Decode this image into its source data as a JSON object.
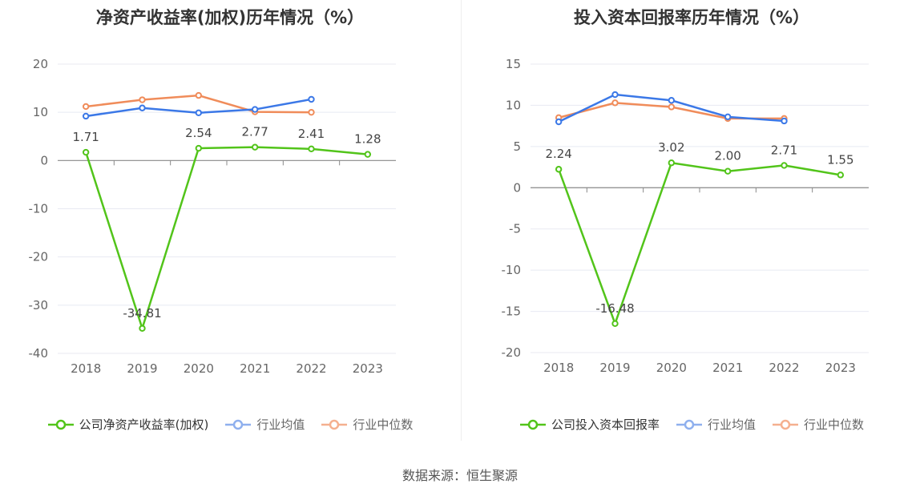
{
  "source_text": "数据来源：恒生聚源",
  "colors": {
    "company": "#52c41a",
    "avg": "#3b78e7",
    "median": "#f08c5a"
  },
  "chart_data": [
    {
      "type": "line",
      "title": "净资产收益率(加权)历年情况（%）",
      "categories": [
        "2018",
        "2019",
        "2020",
        "2021",
        "2022",
        "2023"
      ],
      "ylim": [
        -40,
        20
      ],
      "ytick_step": 10,
      "yticks": [
        "20",
        "10",
        "0",
        "-10",
        "-20",
        "-30",
        "-40"
      ],
      "legend_position": "bottom",
      "series": [
        {
          "name": "公司净资产收益率(加权)",
          "key": "company",
          "values": [
            1.71,
            -34.81,
            2.54,
            2.77,
            2.41,
            1.28
          ],
          "labels": [
            "1.71",
            "-34.81",
            "2.54",
            "2.77",
            "2.41",
            "1.28"
          ]
        },
        {
          "name": "行业均值",
          "key": "avg",
          "values": [
            9.2,
            10.9,
            9.9,
            10.6,
            12.7,
            null
          ]
        },
        {
          "name": "行业中位数",
          "key": "median",
          "values": [
            11.2,
            12.6,
            13.5,
            10.1,
            10.0,
            null
          ]
        }
      ]
    },
    {
      "type": "line",
      "title": "投入资本回报率历年情况（%）",
      "categories": [
        "2018",
        "2019",
        "2020",
        "2021",
        "2022",
        "2023"
      ],
      "ylim": [
        -20,
        15
      ],
      "ytick_step": 5,
      "yticks": [
        "15",
        "10",
        "5",
        "0",
        "-5",
        "-10",
        "-15",
        "-20"
      ],
      "legend_position": "bottom",
      "series": [
        {
          "name": "公司投入资本回报率",
          "key": "company",
          "values": [
            2.24,
            -16.48,
            3.02,
            2.0,
            2.71,
            1.55
          ],
          "labels": [
            "2.24",
            "-16.48",
            "3.02",
            "2.00",
            "2.71",
            "1.55"
          ]
        },
        {
          "name": "行业均值",
          "key": "avg",
          "values": [
            8.0,
            11.3,
            10.6,
            8.6,
            8.1,
            null
          ]
        },
        {
          "name": "行业中位数",
          "key": "median",
          "values": [
            8.5,
            10.3,
            9.8,
            8.4,
            8.4,
            null
          ]
        }
      ]
    }
  ]
}
